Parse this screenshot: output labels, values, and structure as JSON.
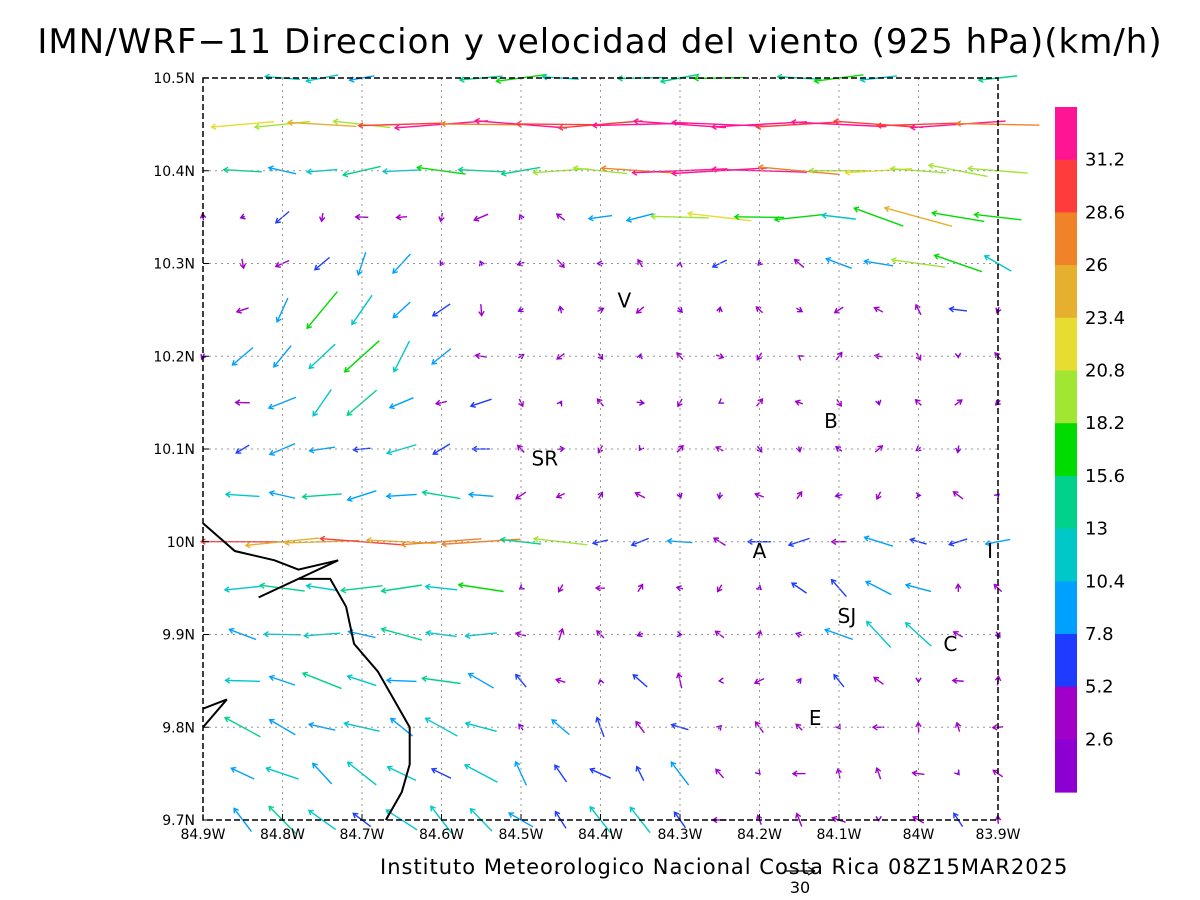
{
  "title": "IMN/WRF−11 Direccion y velocidad del viento (925 hPa)(km/h)",
  "footer": "Instituto Meteorologico Nacional Costa Rica 08Z15MAR2025",
  "reference_vector": {
    "label": "30",
    "speed_kmh": 30
  },
  "axes": {
    "x_ticks": [
      "84.9W",
      "84.8W",
      "84.7W",
      "84.6W",
      "84.5W",
      "84.4W",
      "84.3W",
      "84.2W",
      "84.1W",
      "84W",
      "83.9W"
    ],
    "y_ticks": [
      "10.5N",
      "10.4N",
      "10.3N",
      "10.2N",
      "10.1N",
      "10N",
      "9.9N",
      "9.8N",
      "9.7N"
    ],
    "lon_range": [
      -84.9,
      -83.9
    ],
    "lat_range": [
      9.7,
      10.5
    ],
    "grid": "dotted"
  },
  "colorbar": {
    "labels": [
      "31.2",
      "28.6",
      "26",
      "23.4",
      "20.8",
      "18.2",
      "15.6",
      "13",
      "10.4",
      "7.8",
      "5.2",
      "2.6"
    ],
    "colors": [
      "#ff1493",
      "#ff3c3c",
      "#f08228",
      "#e6af2d",
      "#e6dc32",
      "#a0e632",
      "#00dc00",
      "#00d28c",
      "#00c8c8",
      "#00a0ff",
      "#1e3cff",
      "#a000c8",
      "#8c00d2"
    ]
  },
  "places": [
    {
      "label": "V",
      "lon": -84.37,
      "lat": 10.26
    },
    {
      "label": "SR",
      "lon": -84.47,
      "lat": 10.09
    },
    {
      "label": "B",
      "lon": -84.11,
      "lat": 10.13
    },
    {
      "label": "A",
      "lon": -84.2,
      "lat": 9.99
    },
    {
      "label": "SJ",
      "lon": -84.09,
      "lat": 9.92
    },
    {
      "label": "C",
      "lon": -83.96,
      "lat": 9.89
    },
    {
      "label": "E",
      "lon": -84.13,
      "lat": 9.81
    },
    {
      "label": "I",
      "lon": -83.91,
      "lat": 9.99
    }
  ],
  "coastline": [
    [
      -84.9,
      10.02
    ],
    [
      -84.86,
      9.99
    ],
    [
      -84.81,
      9.98
    ],
    [
      -84.78,
      9.97
    ],
    [
      -84.73,
      9.98
    ],
    [
      -84.78,
      9.96
    ],
    [
      -84.83,
      9.94
    ],
    [
      -84.78,
      9.96
    ],
    [
      -84.74,
      9.96
    ],
    [
      -84.72,
      9.93
    ],
    [
      -84.71,
      9.89
    ],
    [
      -84.68,
      9.86
    ],
    [
      -84.66,
      9.83
    ],
    [
      -84.64,
      9.8
    ],
    [
      -84.64,
      9.76
    ],
    [
      -84.65,
      9.73
    ],
    [
      -84.67,
      9.7
    ]
  ],
  "coastline2": [
    [
      -84.9,
      9.8
    ],
    [
      -84.87,
      9.83
    ],
    [
      -84.9,
      9.82
    ]
  ],
  "wind_field_description": {
    "grid_spacing_deg": 0.05
  }
}
